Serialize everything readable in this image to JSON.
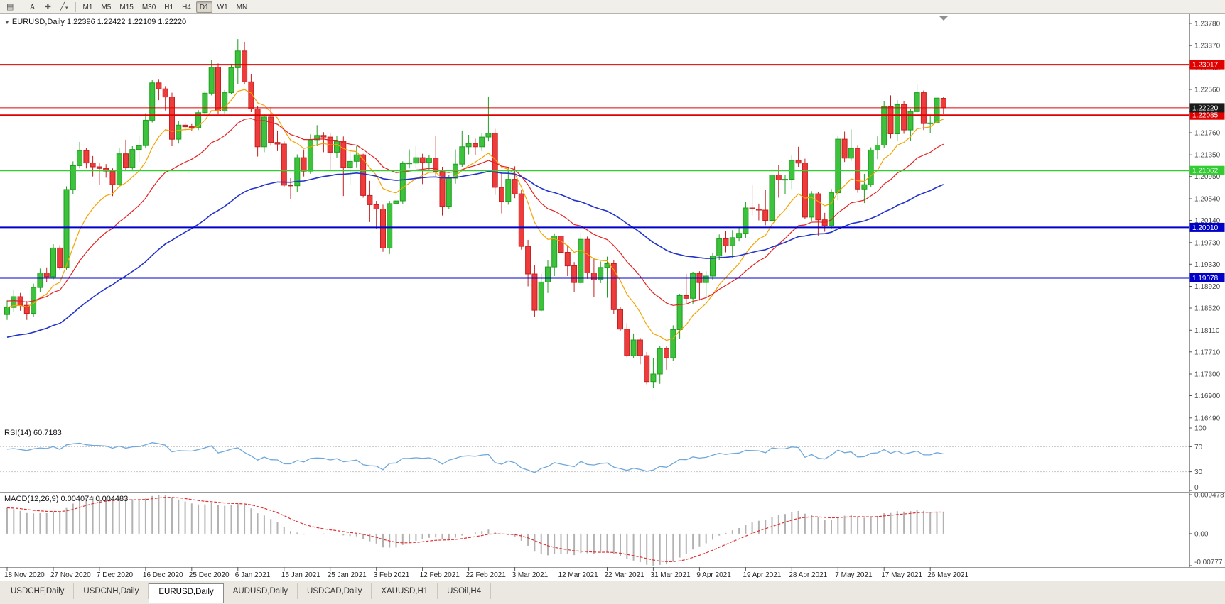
{
  "toolbar": {
    "menu_icon": "▤",
    "cursor_label": "A",
    "crosshair_icon": "✚",
    "line_icon": "╱",
    "caret_icon": "▾",
    "timeframes": [
      "M1",
      "M5",
      "M15",
      "M30",
      "H1",
      "H4",
      "D1",
      "W1",
      "MN"
    ],
    "active_timeframe": "D1"
  },
  "chart_title": {
    "arrow": "▼",
    "symbol": "EURUSD,Daily",
    "ohlc": "1.22396 1.22422 1.22109 1.22220"
  },
  "indicators": {
    "rsi": {
      "label": "RSI(14) 60.7183",
      "period": 14,
      "value": "60.7183",
      "levels": [
        100,
        70,
        30,
        0
      ],
      "dashed_levels": [
        70,
        30
      ],
      "color": "#6FA8DC",
      "seed_gain": 0.0035,
      "seed_loss": 0.0018
    },
    "macd": {
      "label": "MACD(12,26,9) 0.004074 0.004483",
      "fast": 12,
      "slow": 26,
      "signal": 9,
      "values": "0.004074 0.004483",
      "axis_labels": [
        "0.009478",
        "0.00",
        "-0.00777"
      ],
      "scale_max": 0.0095,
      "scale_min": -0.0078,
      "hist_color": "#B2B2B2",
      "signal_color": "#E03030",
      "seed_offset": 0.0063
    }
  },
  "chart_data": {
    "type": "candlestick",
    "title": "EURUSD,Daily",
    "symbol": "EURUSD",
    "timeframe": "Daily",
    "price_scale": {
      "max": 1.2395,
      "min": 1.1633
    },
    "axis_prices": [
      1.2378,
      1.2337,
      1.2296,
      1.2256,
      1.2215,
      1.2176,
      1.2135,
      1.2095,
      1.2054,
      1.2014,
      1.1973,
      1.1933,
      1.1892,
      1.1852,
      1.1811,
      1.1771,
      1.173,
      1.169,
      1.1649
    ],
    "current_price": {
      "value": 1.2222,
      "label": "1.22220",
      "bg": "#1A1A1A",
      "line_color": "#E00000"
    },
    "hlines": [
      {
        "price": 1.23017,
        "label": "1.23017",
        "color": "#E00000",
        "width": 2
      },
      {
        "price": 1.22085,
        "label": "1.22085",
        "color": "#E00000",
        "width": 2
      },
      {
        "price": 1.21062,
        "label": "1.21062",
        "color": "#33CC33",
        "width": 2
      },
      {
        "price": 1.2001,
        "label": "1.20010",
        "color": "#0000C8",
        "width": 2
      },
      {
        "price": 1.19078,
        "label": "1.19078",
        "color": "#0000C8",
        "width": 2
      }
    ],
    "up_color": "#3DC23D",
    "up_stroke": "#1F9E1F",
    "down_color": "#EE3B3B",
    "down_stroke": "#C42020",
    "moving_averages": [
      {
        "period": 10,
        "color": "#F5A300",
        "seed": null,
        "width": 1.2
      },
      {
        "period": 22,
        "color": "#E52020",
        "seed": 1.1865,
        "width": 1.2
      },
      {
        "period": 55,
        "color": "#2233CC",
        "seed": 1.1798,
        "width": 1.6
      }
    ],
    "date_labels": [
      "18 Nov 2020",
      "27 Nov 2020",
      "7 Dec 2020",
      "16 Dec 2020",
      "25 Dec 2020",
      "6 Jan 2021",
      "15 Jan 2021",
      "25 Jan 2021",
      "3 Feb 2021",
      "12 Feb 2021",
      "22 Feb 2021",
      "3 Mar 2021",
      "12 Mar 2021",
      "22 Mar 2021",
      "31 Mar 2021",
      "9 Apr 2021",
      "19 Apr 2021",
      "28 Apr 2021",
      "7 May 2021",
      "17 May 2021",
      "26 May 2021"
    ],
    "label_interval": 7,
    "candles": [
      [
        1.184,
        1.1866,
        1.183,
        1.1853
      ],
      [
        1.1853,
        1.1885,
        1.1845,
        1.1873
      ],
      [
        1.1873,
        1.188,
        1.1847,
        1.1857
      ],
      [
        1.1857,
        1.1865,
        1.183,
        1.1842
      ],
      [
        1.1842,
        1.1897,
        1.1836,
        1.189
      ],
      [
        1.189,
        1.1925,
        1.1882,
        1.1917
      ],
      [
        1.1917,
        1.1927,
        1.19,
        1.191
      ],
      [
        1.191,
        1.197,
        1.1905,
        1.1963
      ],
      [
        1.1963,
        1.1968,
        1.1923,
        1.1927
      ],
      [
        1.1927,
        1.2077,
        1.1923,
        1.2071
      ],
      [
        1.2071,
        1.2123,
        1.2063,
        1.2115
      ],
      [
        1.2115,
        1.2159,
        1.211,
        1.2143
      ],
      [
        1.2143,
        1.2148,
        1.211,
        1.212
      ],
      [
        1.212,
        1.2133,
        1.2095,
        1.2113
      ],
      [
        1.2113,
        1.212,
        1.2079,
        1.211
      ],
      [
        1.211,
        1.2118,
        1.2093,
        1.2105
      ],
      [
        1.2105,
        1.211,
        1.2059,
        1.208
      ],
      [
        1.208,
        1.2148,
        1.2075,
        1.2137
      ],
      [
        1.2137,
        1.2163,
        1.2105,
        1.2112
      ],
      [
        1.2112,
        1.2151,
        1.2108,
        1.2145
      ],
      [
        1.2145,
        1.217,
        1.2122,
        1.2152
      ],
      [
        1.2152,
        1.2212,
        1.2147,
        1.2199
      ],
      [
        1.2199,
        1.2273,
        1.2195,
        1.2268
      ],
      [
        1.2268,
        1.2274,
        1.2236,
        1.2257
      ],
      [
        1.2257,
        1.2262,
        1.2217,
        1.2242
      ],
      [
        1.2242,
        1.225,
        1.2151,
        1.2164
      ],
      [
        1.2164,
        1.2197,
        1.2156,
        1.219
      ],
      [
        1.219,
        1.2195,
        1.2179,
        1.2187
      ],
      [
        1.2187,
        1.2192,
        1.218,
        1.2185
      ],
      [
        1.2185,
        1.2218,
        1.2181,
        1.2213
      ],
      [
        1.2213,
        1.2254,
        1.2208,
        1.2249
      ],
      [
        1.2249,
        1.231,
        1.2245,
        1.2297
      ],
      [
        1.2297,
        1.2304,
        1.221,
        1.2216
      ],
      [
        1.2216,
        1.2255,
        1.2211,
        1.225
      ],
      [
        1.225,
        1.2303,
        1.2247,
        1.2296
      ],
      [
        1.2296,
        1.2349,
        1.2266,
        1.2327
      ],
      [
        1.2327,
        1.2344,
        1.2265,
        1.227
      ],
      [
        1.227,
        1.2285,
        1.2214,
        1.222
      ],
      [
        1.222,
        1.2225,
        1.2132,
        1.215
      ],
      [
        1.215,
        1.221,
        1.214,
        1.2205
      ],
      [
        1.2205,
        1.2223,
        1.2152,
        1.2158
      ],
      [
        1.2158,
        1.218,
        1.2142,
        1.2155
      ],
      [
        1.2155,
        1.216,
        1.2075,
        1.2079
      ],
      [
        1.2079,
        1.2092,
        1.2054,
        1.2078
      ],
      [
        1.2078,
        1.2136,
        1.2066,
        1.213
      ],
      [
        1.213,
        1.2145,
        1.2095,
        1.2105
      ],
      [
        1.2105,
        1.2173,
        1.21,
        1.2163
      ],
      [
        1.2163,
        1.219,
        1.2151,
        1.2171
      ],
      [
        1.2171,
        1.2177,
        1.214,
        1.2168
      ],
      [
        1.2168,
        1.2176,
        1.2108,
        1.214
      ],
      [
        1.214,
        1.217,
        1.213,
        1.216
      ],
      [
        1.216,
        1.2169,
        1.2059,
        1.2112
      ],
      [
        1.2112,
        1.2142,
        1.208,
        1.2123
      ],
      [
        1.2123,
        1.2151,
        1.2112,
        1.2135
      ],
      [
        1.2135,
        1.2137,
        1.2056,
        1.206
      ],
      [
        1.206,
        1.2087,
        1.2011,
        1.2043
      ],
      [
        1.2043,
        1.205,
        1.1999,
        1.2035
      ],
      [
        1.2035,
        1.2043,
        1.1956,
        1.1963
      ],
      [
        1.1963,
        1.205,
        1.1952,
        1.2045
      ],
      [
        1.2045,
        1.2065,
        1.2035,
        1.205
      ],
      [
        1.205,
        1.2123,
        1.2045,
        1.2119
      ],
      [
        1.2119,
        1.2145,
        1.211,
        1.212
      ],
      [
        1.212,
        1.2151,
        1.2112,
        1.213
      ],
      [
        1.213,
        1.2137,
        1.2081,
        1.2121
      ],
      [
        1.2121,
        1.2135,
        1.2105,
        1.2129
      ],
      [
        1.2129,
        1.217,
        1.2096,
        1.2104
      ],
      [
        1.2104,
        1.2113,
        1.2023,
        1.204
      ],
      [
        1.204,
        1.2098,
        1.2035,
        1.2092
      ],
      [
        1.2092,
        1.2145,
        1.2082,
        1.2118
      ],
      [
        1.2118,
        1.218,
        1.2113,
        1.215
      ],
      [
        1.215,
        1.2172,
        1.2136,
        1.2156
      ],
      [
        1.2156,
        1.2165,
        1.2134,
        1.215
      ],
      [
        1.215,
        1.2176,
        1.2142,
        1.2168
      ],
      [
        1.2168,
        1.2243,
        1.216,
        1.2175
      ],
      [
        1.2175,
        1.2183,
        1.2061,
        1.2075
      ],
      [
        1.2075,
        1.2101,
        1.2027,
        1.2049
      ],
      [
        1.2049,
        1.2113,
        1.2043,
        1.209
      ],
      [
        1.209,
        1.2114,
        1.2055,
        1.2063
      ],
      [
        1.2063,
        1.207,
        1.196,
        1.1966
      ],
      [
        1.1966,
        1.1978,
        1.1892,
        1.1915
      ],
      [
        1.1915,
        1.1932,
        1.1836,
        1.1848
      ],
      [
        1.1848,
        1.1915,
        1.1846,
        1.19
      ],
      [
        1.19,
        1.194,
        1.188,
        1.1928
      ],
      [
        1.1928,
        1.199,
        1.1911,
        1.1985
      ],
      [
        1.1985,
        1.1995,
        1.1943,
        1.1955
      ],
      [
        1.1955,
        1.1968,
        1.1911,
        1.193
      ],
      [
        1.193,
        1.1937,
        1.1882,
        1.1899
      ],
      [
        1.1899,
        1.1989,
        1.1895,
        1.1979
      ],
      [
        1.1979,
        1.1984,
        1.1906,
        1.1917
      ],
      [
        1.1917,
        1.1945,
        1.1873,
        1.1904
      ],
      [
        1.1904,
        1.1938,
        1.1898,
        1.1927
      ],
      [
        1.1927,
        1.1947,
        1.1871,
        1.1934
      ],
      [
        1.1934,
        1.194,
        1.1841,
        1.1849
      ],
      [
        1.1849,
        1.1854,
        1.1809,
        1.1813
      ],
      [
        1.1813,
        1.1824,
        1.1761,
        1.1764
      ],
      [
        1.1764,
        1.1805,
        1.176,
        1.1793
      ],
      [
        1.1793,
        1.1797,
        1.1748,
        1.1764
      ],
      [
        1.1764,
        1.1771,
        1.1711,
        1.1716
      ],
      [
        1.1716,
        1.176,
        1.1704,
        1.173
      ],
      [
        1.173,
        1.1782,
        1.1712,
        1.1777
      ],
      [
        1.1777,
        1.1782,
        1.1738,
        1.176
      ],
      [
        1.176,
        1.182,
        1.1755,
        1.1812
      ],
      [
        1.1812,
        1.1878,
        1.1795,
        1.1875
      ],
      [
        1.1875,
        1.1915,
        1.1861,
        1.187
      ],
      [
        1.187,
        1.1919,
        1.186,
        1.1916
      ],
      [
        1.1916,
        1.192,
        1.1866,
        1.1899
      ],
      [
        1.1899,
        1.192,
        1.1872,
        1.1911
      ],
      [
        1.1911,
        1.1954,
        1.1904,
        1.1948
      ],
      [
        1.1948,
        1.1988,
        1.194,
        1.198
      ],
      [
        1.198,
        1.1994,
        1.1955,
        1.1967
      ],
      [
        1.1967,
        1.1996,
        1.1945,
        1.1982
      ],
      [
        1.1982,
        1.2,
        1.1975,
        1.199
      ],
      [
        1.199,
        1.2048,
        1.1982,
        1.2037
      ],
      [
        1.2037,
        1.208,
        1.2023,
        1.2035
      ],
      [
        1.2035,
        1.2045,
        1.2014,
        1.2033
      ],
      [
        1.2033,
        1.2071,
        1.2005,
        1.2014
      ],
      [
        1.2014,
        1.2101,
        1.201,
        1.2098
      ],
      [
        1.2098,
        1.2117,
        1.2056,
        1.2089
      ],
      [
        1.2089,
        1.2098,
        1.2063,
        1.209
      ],
      [
        1.209,
        1.2134,
        1.2072,
        1.2125
      ],
      [
        1.2125,
        1.215,
        1.2113,
        1.212
      ],
      [
        1.212,
        1.2128,
        1.2016,
        1.202
      ],
      [
        1.202,
        1.2068,
        1.2013,
        1.2063
      ],
      [
        1.2063,
        1.2067,
        1.1986,
        1.2015
      ],
      [
        1.2015,
        1.2028,
        1.1993,
        1.2004
      ],
      [
        1.2004,
        1.2072,
        1.1998,
        1.2065
      ],
      [
        1.2065,
        1.2171,
        1.2051,
        1.2164
      ],
      [
        1.2164,
        1.2178,
        1.2122,
        1.2129
      ],
      [
        1.2129,
        1.2182,
        1.2124,
        1.2147
      ],
      [
        1.2147,
        1.2152,
        1.2065,
        1.2072
      ],
      [
        1.2072,
        1.21,
        1.2046,
        1.208
      ],
      [
        1.208,
        1.2149,
        1.2075,
        1.2144
      ],
      [
        1.2144,
        1.2169,
        1.2127,
        1.2153
      ],
      [
        1.2153,
        1.2234,
        1.2148,
        1.2224
      ],
      [
        1.2224,
        1.2245,
        1.2165,
        1.2174
      ],
      [
        1.2174,
        1.2236,
        1.216,
        1.2228
      ],
      [
        1.2228,
        1.2234,
        1.2174,
        1.2181
      ],
      [
        1.2181,
        1.222,
        1.2161,
        1.2215
      ],
      [
        1.2215,
        1.2266,
        1.2212,
        1.225
      ],
      [
        1.225,
        1.2254,
        1.2181,
        1.2193
      ],
      [
        1.2193,
        1.2209,
        1.2175,
        1.2194
      ],
      [
        1.2194,
        1.2245,
        1.219,
        1.224
      ],
      [
        1.22396,
        1.22422,
        1.22109,
        1.2222
      ]
    ]
  },
  "tabs": [
    {
      "label": "USDCHF,Daily",
      "active": false
    },
    {
      "label": "USDCNH,Daily",
      "active": false
    },
    {
      "label": "EURUSD,Daily",
      "active": true
    },
    {
      "label": "AUDUSD,Daily",
      "active": false
    },
    {
      "label": "USDCAD,Daily",
      "active": false
    },
    {
      "label": "XAUUSD,H1",
      "active": false
    },
    {
      "label": "USOil,H4",
      "active": false
    }
  ]
}
